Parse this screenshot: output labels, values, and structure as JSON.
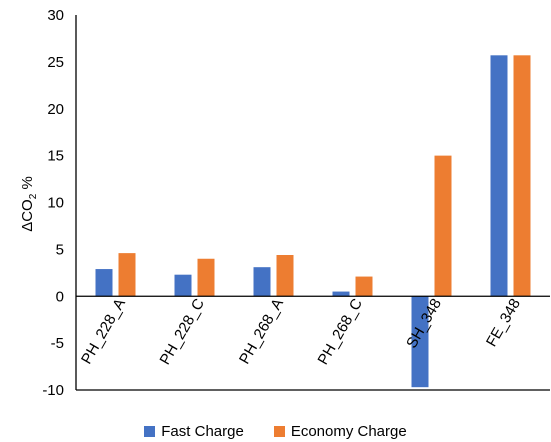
{
  "chart_data": {
    "type": "bar",
    "title": "",
    "xlabel": "",
    "ylabel": {
      "prefix": "ΔCO",
      "subscript": "2",
      "suffix": " %"
    },
    "ylim": [
      -10,
      30
    ],
    "yticks": [
      -10,
      -5,
      0,
      5,
      10,
      15,
      20,
      25,
      30
    ],
    "grid": false,
    "legend_position": "bottom",
    "categories": [
      "PH_228_A",
      "PH_228_C",
      "PH_268_A",
      "PH_268_C",
      "SH_348",
      "FE_348"
    ],
    "series": [
      {
        "name": "Fast Charge",
        "color": "#4472C4",
        "values": [
          2.9,
          2.3,
          3.1,
          0.5,
          -9.7,
          25.7
        ]
      },
      {
        "name": "Economy Charge",
        "color": "#ED7D31",
        "values": [
          4.6,
          4.0,
          4.4,
          2.1,
          15.0,
          25.7
        ]
      }
    ]
  }
}
